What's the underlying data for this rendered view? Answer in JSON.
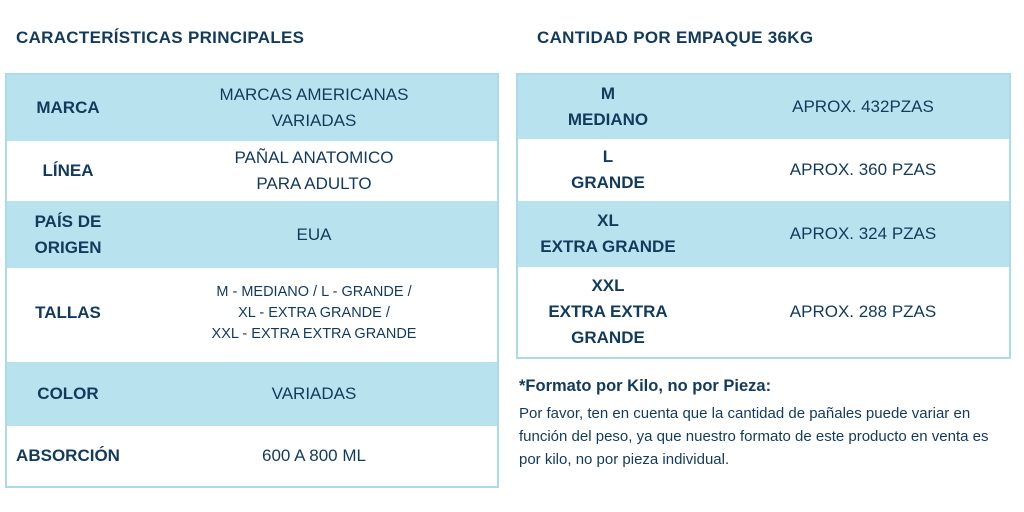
{
  "left": {
    "title": "CARACTERÍSTICAS PRINCIPALES",
    "rows": [
      {
        "label": "MARCA",
        "value": "MARCAS AMERICANAS\nVARIADAS"
      },
      {
        "label": "LÍNEA",
        "value": "PAÑAL ANATOMICO\nPARA ADULTO"
      },
      {
        "label": "PAÍS DE\nORIGEN",
        "value": "EUA"
      },
      {
        "label": "TALLAS",
        "value": "M - MEDIANO / L - GRANDE /\nXL  - EXTRA GRANDE /\nXXL - EXTRA EXTRA GRANDE"
      },
      {
        "label": "COLOR",
        "value": "VARIADAS"
      },
      {
        "label": "ABSORCIÓN",
        "value": "600 A 800 ML"
      }
    ]
  },
  "right": {
    "title": "CANTIDAD POR EMPAQUE 36KG",
    "rows": [
      {
        "label": "M\nMEDIANO",
        "value": "APROX. 432PZAS"
      },
      {
        "label": "L\nGRANDE",
        "value": "APROX. 360 PZAS"
      },
      {
        "label": "XL\nEXTRA GRANDE",
        "value": "APROX. 324 PZAS"
      },
      {
        "label": "XXL\nEXTRA EXTRA\nGRANDE",
        "value": "APROX. 288 PZAS"
      }
    ]
  },
  "note": {
    "title": "*Formato por Kilo, no por Pieza:",
    "body": "Por favor, ten en cuenta que la cantidad de pañales puede variar en función del peso, ya que nuestro formato de este producto en venta es por kilo, no por pieza individual."
  }
}
